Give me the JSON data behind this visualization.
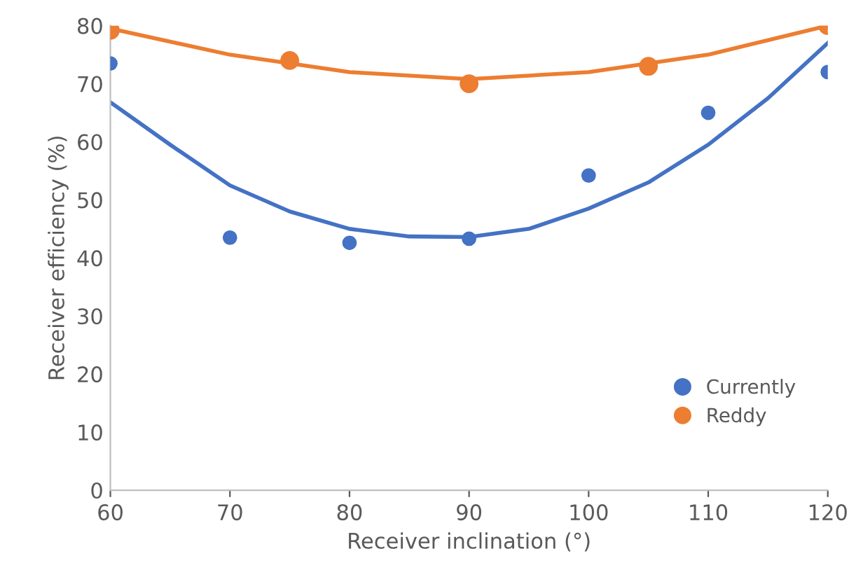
{
  "chart_data": {
    "type": "scatter",
    "xlabel": "Receiver inclination (°)",
    "ylabel": "Receiver efficiency (%)",
    "xlim": [
      60,
      120
    ],
    "xticks": [
      60,
      70,
      80,
      90,
      100,
      110,
      120
    ],
    "ylim": [
      0,
      80
    ],
    "yticks": [
      0,
      10,
      20,
      30,
      40,
      50,
      60,
      70,
      80
    ],
    "grid": false,
    "legend": "bottom right",
    "series": [
      {
        "name": "Currently",
        "color": "#4472c4",
        "marker": "circle",
        "x": [
          60,
          70,
          80,
          90,
          100,
          110,
          120
        ],
        "values": [
          73.5,
          43.5,
          42.6,
          43.3,
          54.2,
          65,
          72
        ]
      },
      {
        "name": "Reddy",
        "color": "#ed7d31",
        "marker": "circle",
        "x": [
          60,
          75,
          90,
          105,
          120
        ],
        "values": [
          79.2,
          74,
          70,
          73,
          80
        ]
      },
      {
        "type": "line",
        "color": "#4472c4",
        "marker": "none",
        "x": [
          60,
          65,
          70,
          75,
          80,
          85,
          90,
          95,
          100,
          105,
          110,
          115,
          120
        ],
        "values": [
          66.8,
          59.5,
          52.5,
          48,
          45,
          43.7,
          43.6,
          45,
          48.5,
          53,
          59.5,
          67.5,
          77
        ]
      },
      {
        "type": "line",
        "color": "#ed7d31",
        "marker": "none",
        "x": [
          60,
          70,
          75,
          80,
          90,
          100,
          105,
          110,
          120
        ],
        "values": [
          79.5,
          75,
          73.5,
          72,
          70.8,
          72,
          73.5,
          75,
          80
        ]
      }
    ]
  }
}
